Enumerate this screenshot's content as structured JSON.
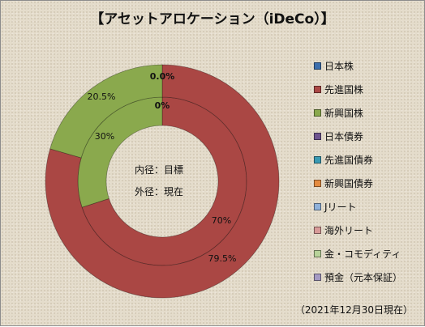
{
  "chart_data": {
    "type": "pie",
    "subtype": "doughnut",
    "title": "【アセットアロケーション（iDeCo）】",
    "categories": [
      "日本株",
      "先進国株",
      "新興国株",
      "日本債券",
      "先進国債券",
      "新興国債券",
      "Jリート",
      "海外リート",
      "金・コモディティ",
      "預金（元本保証）"
    ],
    "colors": [
      "#3d6fad",
      "#aa4744",
      "#8aa94d",
      "#6e548f",
      "#3a9ab3",
      "#e48b3f",
      "#8fb1da",
      "#d89a98",
      "#b8d39a",
      "#a49ac3"
    ],
    "series": [
      {
        "name": "目標",
        "ring": "inner",
        "values": [
          0,
          70,
          30,
          0,
          0,
          0,
          0,
          0,
          0,
          0
        ],
        "data_labels": [
          "0%",
          "70%",
          "30%"
        ]
      },
      {
        "name": "現在",
        "ring": "outer",
        "values": [
          0,
          79.5,
          20.5,
          0,
          0,
          0,
          0,
          0,
          0,
          0
        ],
        "data_labels": [
          "0.0%",
          "79.5%",
          "20.5%"
        ]
      }
    ],
    "legend_position": "right",
    "center_labels": [
      "内径：目標",
      "外径：現在"
    ]
  },
  "footer": {
    "as_of": "（2021年12月30日現在）"
  }
}
